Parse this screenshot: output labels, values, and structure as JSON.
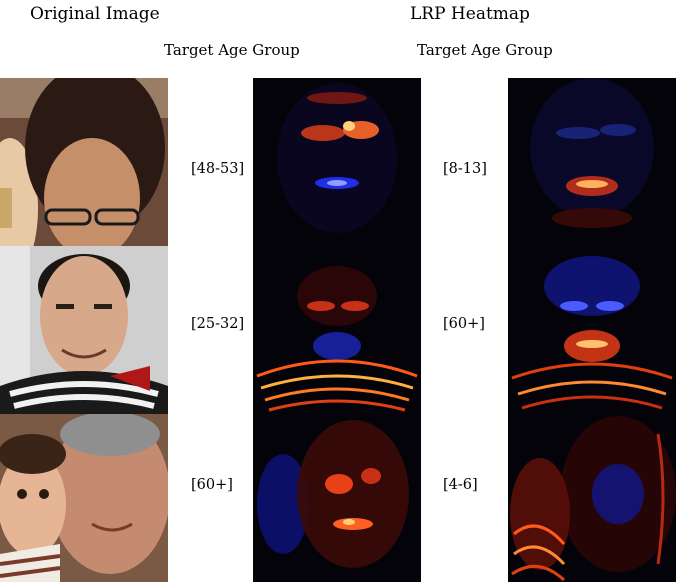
{
  "headers": {
    "original": "Original Image",
    "heatmap": "LRP Heatmap"
  },
  "subheaders": {
    "left": "Target Age Group",
    "right": "Target Age Group"
  },
  "rows": [
    {
      "label_a": "[48-53]",
      "label_b": "[8-13]"
    },
    {
      "label_a": "[25-32]",
      "label_b": "[60+]"
    },
    {
      "label_a": "[60+]",
      "label_b": "[4-6]"
    }
  ],
  "colors": {
    "positive_relevance": "#ff3a10",
    "negative_relevance": "#2233ff",
    "heatmap_background": "#05030a"
  }
}
